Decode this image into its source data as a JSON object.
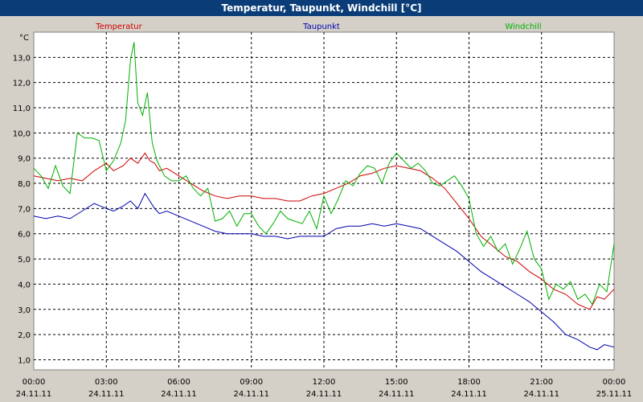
{
  "chart_data": {
    "type": "line",
    "title": "Temperatur, Taupunkt, Windchill [°C]",
    "ylabel": "°C",
    "ylim": [
      0.6,
      14.0
    ],
    "yticks": [
      "1,0",
      "2,0",
      "3,0",
      "4,0",
      "5,0",
      "6,0",
      "7,0",
      "8,0",
      "9,0",
      "10,0",
      "11,0",
      "12,0",
      "13,0"
    ],
    "ytick_values": [
      1,
      2,
      3,
      4,
      5,
      6,
      7,
      8,
      9,
      10,
      11,
      12,
      13
    ],
    "xlim": [
      0,
      24
    ],
    "xticks": [
      {
        "time": "00:00",
        "date": "24.11.11",
        "h": 0
      },
      {
        "time": "03:00",
        "date": "24.11.11",
        "h": 3
      },
      {
        "time": "06:00",
        "date": "24.11.11",
        "h": 6
      },
      {
        "time": "09:00",
        "date": "24.11.11",
        "h": 9
      },
      {
        "time": "12:00",
        "date": "24.11.11",
        "h": 12
      },
      {
        "time": "15:00",
        "date": "24.11.11",
        "h": 15
      },
      {
        "time": "18:00",
        "date": "24.11.11",
        "h": 18
      },
      {
        "time": "21:00",
        "date": "24.11.11",
        "h": 21
      },
      {
        "time": "00:00",
        "date": "25.11.11",
        "h": 24
      }
    ],
    "grid": true,
    "series": [
      {
        "name": "Temperatur",
        "color": "#d00000",
        "x": [
          0,
          0.5,
          1,
          1.5,
          2,
          2.5,
          3,
          3.3,
          3.7,
          4,
          4.3,
          4.6,
          4.8,
          5,
          5.2,
          5.5,
          6,
          6.5,
          7,
          7.5,
          8,
          8.5,
          9,
          9.5,
          10,
          10.5,
          11,
          11.5,
          12,
          12.5,
          13,
          13.5,
          14,
          14.5,
          15,
          15.5,
          16,
          16.5,
          17,
          17.5,
          18,
          18.5,
          19,
          19.5,
          20,
          20.5,
          21,
          21.5,
          22,
          22.5,
          23,
          23.3,
          23.6,
          24
        ],
        "values": [
          8.3,
          8.2,
          8.1,
          8.2,
          8.1,
          8.5,
          8.8,
          8.5,
          8.7,
          9.0,
          8.8,
          9.2,
          8.9,
          8.8,
          8.5,
          8.6,
          8.3,
          8.0,
          7.7,
          7.5,
          7.4,
          7.5,
          7.5,
          7.4,
          7.4,
          7.3,
          7.3,
          7.5,
          7.6,
          7.8,
          8.0,
          8.3,
          8.4,
          8.6,
          8.7,
          8.6,
          8.5,
          8.2,
          7.8,
          7.2,
          6.6,
          5.9,
          5.5,
          5.1,
          4.9,
          4.5,
          4.2,
          3.8,
          3.6,
          3.2,
          3.0,
          3.5,
          3.4,
          3.8
        ]
      },
      {
        "name": "Taupunkt",
        "color": "#0000b0",
        "x": [
          0,
          0.5,
          1,
          1.5,
          2,
          2.5,
          3,
          3.3,
          3.7,
          4,
          4.3,
          4.6,
          4.8,
          5,
          5.2,
          5.5,
          6,
          6.5,
          7,
          7.5,
          8,
          8.5,
          9,
          9.5,
          10,
          10.5,
          11,
          11.5,
          12,
          12.5,
          13,
          13.5,
          14,
          14.5,
          15,
          15.5,
          16,
          16.5,
          17,
          17.5,
          18,
          18.5,
          19,
          19.5,
          20,
          20.5,
          21,
          21.5,
          22,
          22.5,
          23,
          23.3,
          23.6,
          24
        ],
        "values": [
          6.7,
          6.6,
          6.7,
          6.6,
          6.9,
          7.2,
          7.0,
          6.9,
          7.1,
          7.3,
          7.0,
          7.6,
          7.3,
          7.0,
          6.8,
          6.9,
          6.7,
          6.5,
          6.3,
          6.1,
          6.0,
          6.0,
          6.0,
          5.9,
          5.9,
          5.8,
          5.9,
          5.9,
          5.9,
          6.2,
          6.3,
          6.3,
          6.4,
          6.3,
          6.4,
          6.3,
          6.2,
          5.9,
          5.6,
          5.3,
          4.9,
          4.5,
          4.2,
          3.9,
          3.6,
          3.3,
          2.9,
          2.5,
          2.0,
          1.8,
          1.5,
          1.4,
          1.6,
          1.5
        ]
      },
      {
        "name": "Windchill",
        "color": "#00b000",
        "x": [
          0,
          0.3,
          0.6,
          0.9,
          1.2,
          1.5,
          1.8,
          2.1,
          2.4,
          2.7,
          3.0,
          3.3,
          3.6,
          3.8,
          4.0,
          4.15,
          4.3,
          4.5,
          4.7,
          4.9,
          5.1,
          5.4,
          5.7,
          6.0,
          6.3,
          6.6,
          6.9,
          7.2,
          7.5,
          7.8,
          8.1,
          8.4,
          8.7,
          9.0,
          9.3,
          9.6,
          9.9,
          10.2,
          10.5,
          10.8,
          11.1,
          11.4,
          11.7,
          12.0,
          12.3,
          12.6,
          12.9,
          13.2,
          13.5,
          13.8,
          14.1,
          14.4,
          14.7,
          15.0,
          15.3,
          15.6,
          15.9,
          16.2,
          16.5,
          16.8,
          17.1,
          17.4,
          17.7,
          18.0,
          18.3,
          18.6,
          18.9,
          19.2,
          19.5,
          19.8,
          20.1,
          20.4,
          20.7,
          21.0,
          21.3,
          21.6,
          21.9,
          22.2,
          22.5,
          22.8,
          23.1,
          23.4,
          23.7,
          24.0
        ],
        "values": [
          8.6,
          8.3,
          7.8,
          8.7,
          7.9,
          7.6,
          10.0,
          9.8,
          9.8,
          9.7,
          8.5,
          8.9,
          9.6,
          10.5,
          12.9,
          13.6,
          11.2,
          10.7,
          11.6,
          9.6,
          8.9,
          8.3,
          8.1,
          8.1,
          8.3,
          7.8,
          7.5,
          7.8,
          6.5,
          6.6,
          6.9,
          6.3,
          6.8,
          6.8,
          6.3,
          6.0,
          6.4,
          6.9,
          6.6,
          6.5,
          6.4,
          6.9,
          6.2,
          7.5,
          6.8,
          7.4,
          8.1,
          7.9,
          8.4,
          8.7,
          8.6,
          8.0,
          8.8,
          9.2,
          8.9,
          8.6,
          8.8,
          8.5,
          8.0,
          7.9,
          8.1,
          8.3,
          7.9,
          7.4,
          6.0,
          5.5,
          5.9,
          5.3,
          5.6,
          4.8,
          5.4,
          6.1,
          5.0,
          4.6,
          3.4,
          4.0,
          3.8,
          4.1,
          3.4,
          3.6,
          3.2,
          4.0,
          3.7,
          5.6
        ]
      }
    ]
  }
}
